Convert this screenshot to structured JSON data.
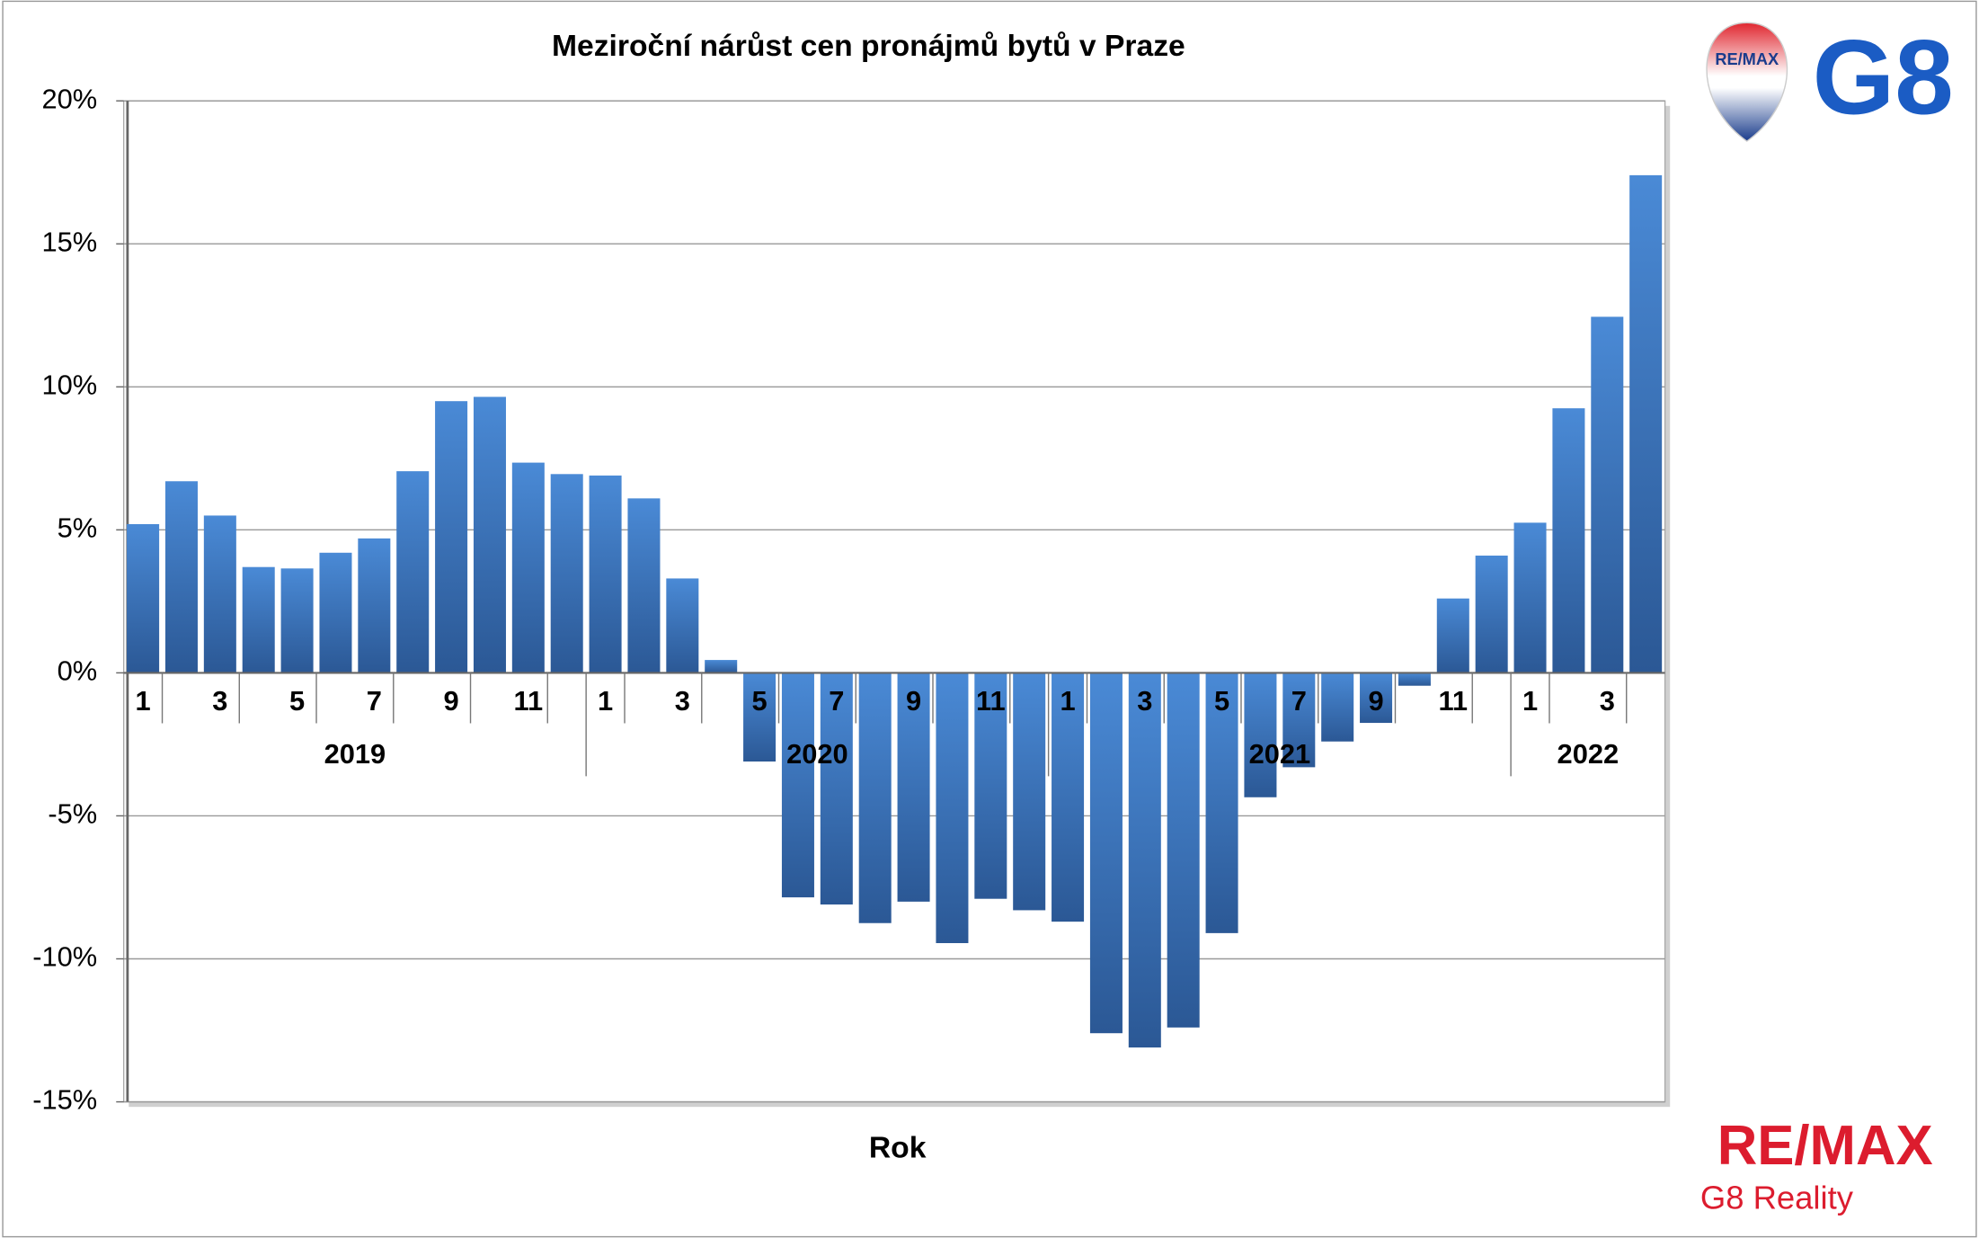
{
  "chart_data": {
    "type": "bar",
    "title": "Meziroční nárůst cen pronájmů bytů v Praze",
    "x_label": "Rok",
    "categories": [
      "1",
      null,
      "3",
      null,
      "5",
      null,
      "7",
      null,
      "9",
      null,
      "11",
      null,
      "1",
      null,
      "3",
      null,
      "5",
      null,
      "7",
      null,
      "9",
      null,
      "11",
      null,
      "1",
      null,
      "3",
      null,
      "5",
      null,
      "7",
      null,
      "9",
      null,
      "11",
      null,
      "1",
      null,
      "3",
      null
    ],
    "years": [
      "2019",
      "2020",
      "2021",
      "2022"
    ],
    "values": [
      5.2,
      6.7,
      5.5,
      3.7,
      3.65,
      4.2,
      4.7,
      7.05,
      9.5,
      9.65,
      7.35,
      6.95,
      6.9,
      6.1,
      3.3,
      0.45,
      -3.1,
      -7.85,
      -8.1,
      -8.75,
      -8.0,
      -9.45,
      -7.9,
      -8.3,
      -8.7,
      -12.6,
      -13.1,
      -12.4,
      -9.1,
      -4.35,
      -3.3,
      -2.4,
      -1.75,
      -0.45,
      2.6,
      4.1,
      5.25,
      9.25,
      12.45,
      17.4
    ],
    "color": "#3a72c0",
    "ylim": [
      -15,
      20
    ],
    "yticks": [
      {
        "value": -15,
        "label": "-15%"
      },
      {
        "value": -10,
        "label": "-10%"
      },
      {
        "value": -5,
        "label": "-5%"
      },
      {
        "value": 0,
        "label": "0%"
      },
      {
        "value": 5,
        "label": "5%"
      },
      {
        "value": 10,
        "label": "10%"
      },
      {
        "value": 15,
        "label": "15%"
      },
      {
        "value": 20,
        "label": "20%"
      }
    ],
    "grid": true
  },
  "logos": {
    "balloon": "RE/MAX",
    "g8": "G8",
    "brand": "RE/MAX",
    "company": "G8 Reality"
  }
}
